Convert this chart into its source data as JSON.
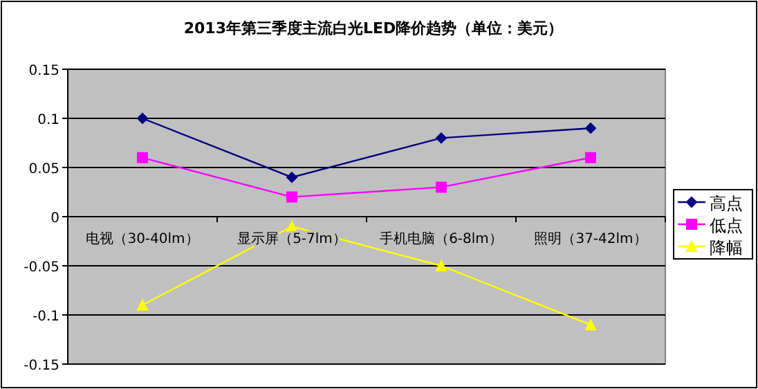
{
  "chart_data": {
    "type": "line",
    "title": "2013年第三季度主流白光LED降价趋势（单位：美元）",
    "categories": [
      "电视（30-40lm）",
      "显示屏（5-7lm）",
      "手机电脑（6-8lm）",
      "照明（37-42lm）"
    ],
    "series": [
      {
        "name": "高点",
        "color": "#000080",
        "marker": "diamond",
        "values": [
          0.1,
          0.04,
          0.08,
          0.09
        ]
      },
      {
        "name": "低点",
        "color": "#ff00ff",
        "marker": "square",
        "values": [
          0.06,
          0.02,
          0.03,
          0.06
        ]
      },
      {
        "name": "降幅",
        "color": "#ffff00",
        "marker": "triangle",
        "values": [
          -0.09,
          -0.01,
          -0.05,
          -0.11
        ]
      }
    ],
    "ylim": [
      -0.15,
      0.15
    ],
    "yticks": [
      {
        "value": 0.15,
        "label": "0.15"
      },
      {
        "value": 0.1,
        "label": "0.1"
      },
      {
        "value": 0.05,
        "label": "0.05"
      },
      {
        "value": 0,
        "label": "0"
      },
      {
        "value": -0.05,
        "label": "-0.05"
      },
      {
        "value": -0.1,
        "label": "-0.1"
      },
      {
        "value": -0.15,
        "label": "-0.15"
      }
    ],
    "grid": "y",
    "legend": "right"
  }
}
